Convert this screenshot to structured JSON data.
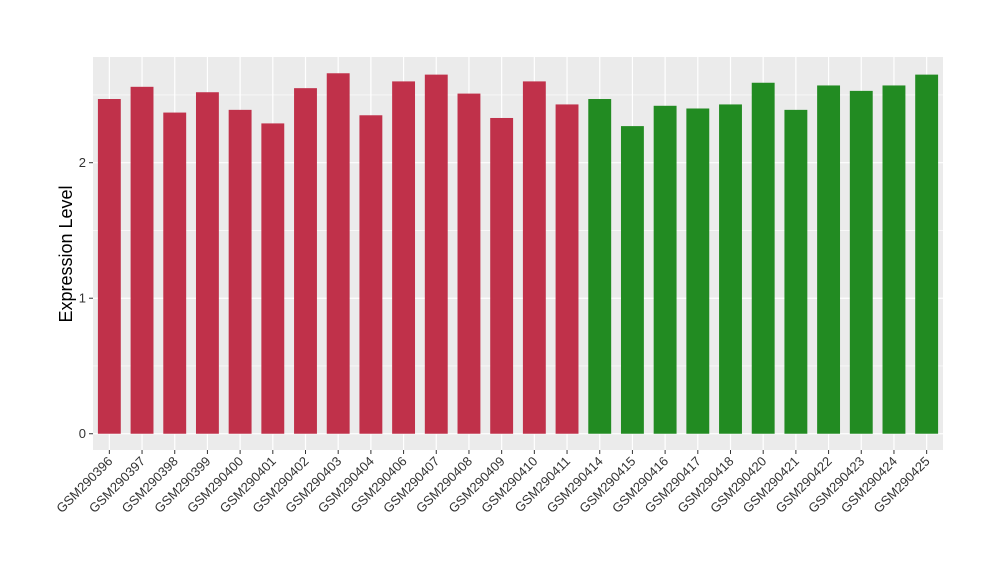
{
  "chart_data": {
    "type": "bar",
    "title": "",
    "xlabel": "",
    "ylabel": "Expression Level",
    "ylim": [
      -0.12,
      2.78
    ],
    "yticks": [
      0,
      1,
      2
    ],
    "grid": true,
    "legend": "none",
    "background_color": "#ebebeb",
    "grid_color": "#ffffff",
    "categories": [
      "GSM290396",
      "GSM290397",
      "GSM290398",
      "GSM290399",
      "GSM290400",
      "GSM290401",
      "GSM290402",
      "GSM290403",
      "GSM290404",
      "GSM290406",
      "GSM290407",
      "GSM290408",
      "GSM290409",
      "GSM290410",
      "GSM290411",
      "GSM290414",
      "GSM290415",
      "GSM290416",
      "GSM290417",
      "GSM290418",
      "GSM290420",
      "GSM290421",
      "GSM290422",
      "GSM290423",
      "GSM290424",
      "GSM290425"
    ],
    "values": [
      2.47,
      2.56,
      2.37,
      2.52,
      2.39,
      2.29,
      2.55,
      2.66,
      2.35,
      2.6,
      2.65,
      2.51,
      2.33,
      2.6,
      2.43,
      2.47,
      2.27,
      2.42,
      2.4,
      2.43,
      2.59,
      2.39,
      2.57,
      2.53,
      2.57,
      2.65
    ],
    "groups": [
      {
        "color": "#c0314a",
        "count": 15
      },
      {
        "color": "#228b22",
        "count": 11
      }
    ]
  }
}
